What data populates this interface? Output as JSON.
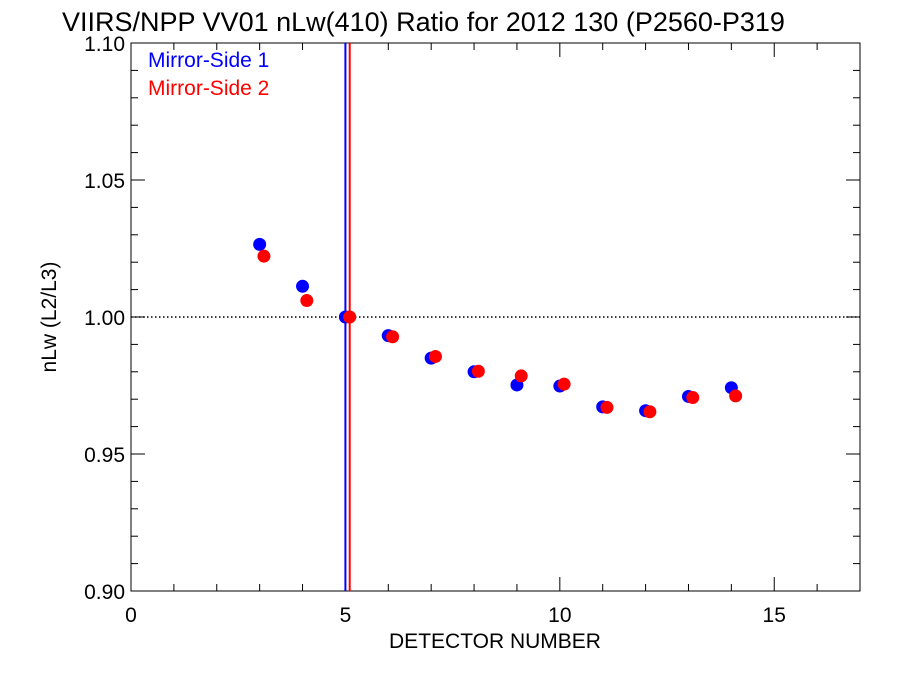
{
  "chart_data": {
    "type": "scatter",
    "title": "VIIRS/NPP VV01 nLw(410) Ratio for 2012 130 (P2560-P319",
    "xlabel": "DETECTOR NUMBER",
    "ylabel": "nLw (L2/L3)",
    "xlim": [
      0,
      17
    ],
    "ylim": [
      0.9,
      1.1
    ],
    "xticks": [
      "0",
      "5",
      "10",
      "15"
    ],
    "xtick_values": [
      0,
      5,
      10,
      15
    ],
    "yticks": [
      "0.90",
      "0.95",
      "1.00",
      "1.05",
      "1.10"
    ],
    "ytick_values": [
      0.9,
      0.95,
      1.0,
      1.05,
      1.1
    ],
    "reference_line": {
      "y": 1.0,
      "style": "dotted",
      "color": "#000000"
    },
    "vertical_lines": [
      {
        "x": 5.0,
        "color": "#0000ff"
      },
      {
        "x": 5.1,
        "color": "#ff0000"
      }
    ],
    "legend_position": "top-left",
    "series": [
      {
        "name": "Mirror-Side 1",
        "color": "#0000ff",
        "x": [
          3,
          4,
          5,
          6,
          7,
          8,
          9,
          10,
          11,
          12,
          13,
          14
        ],
        "y": [
          1.0265,
          1.0112,
          1.0,
          0.9932,
          0.985,
          0.98,
          0.9752,
          0.9748,
          0.9672,
          0.9658,
          0.971,
          0.9742
        ]
      },
      {
        "name": "Mirror-Side 2",
        "color": "#ff0000",
        "x": [
          3.1,
          4.1,
          5.1,
          6.1,
          7.1,
          8.1,
          9.1,
          10.1,
          11.1,
          12.1,
          13.1,
          14.1
        ],
        "y": [
          1.0222,
          1.006,
          1.0,
          0.9928,
          0.9856,
          0.9802,
          0.9785,
          0.9755,
          0.967,
          0.9654,
          0.9706,
          0.9712
        ]
      }
    ]
  }
}
